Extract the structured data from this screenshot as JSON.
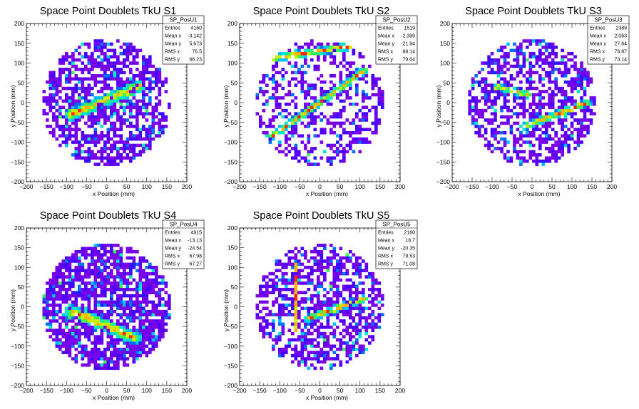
{
  "chart_data": [
    {
      "type": "heatmap",
      "title": "Space Point Doublets TkU S1",
      "xlabel": "x Position (mm)",
      "ylabel": "y Position (mm)",
      "xlim": [
        -200,
        200
      ],
      "ylim": [
        -200,
        200
      ],
      "xticks": [
        "−200",
        "−150",
        "−100",
        "−50",
        "0",
        "50",
        "100",
        "150",
        "200"
      ],
      "yticks": [
        "−200",
        "−150",
        "−100",
        "−50",
        "0",
        "50",
        "100",
        "150",
        "200"
      ],
      "circle_radius_mm": 160,
      "bin_size_mm": 8,
      "band": {
        "x0": -90,
        "y0": -30,
        "x1": 80,
        "y1": 40,
        "width": 16
      },
      "band2": null,
      "fill_fraction": 0.62,
      "seed": 11,
      "stats": {
        "name": "SP_PosU1",
        "rows": [
          {
            "label": "Entries",
            "value": "4160"
          },
          {
            "label": "Mean x",
            "value": "-3.142"
          },
          {
            "label": "Mean y",
            "value": "5.673"
          },
          {
            "label": "RMS x",
            "value": "76.5"
          },
          {
            "label": "RMS y",
            "value": "66.23"
          }
        ]
      }
    },
    {
      "type": "heatmap",
      "title": "Space Point Doublets TkU S2",
      "xlabel": "x Position (mm)",
      "ylabel": "y Position (mm)",
      "xlim": [
        -200,
        200
      ],
      "ylim": [
        -200,
        200
      ],
      "xticks": [
        "−200",
        "−150",
        "−100",
        "−50",
        "0",
        "50",
        "100",
        "150",
        "200"
      ],
      "yticks": [
        "−200",
        "−150",
        "−100",
        "−50",
        "0",
        "50",
        "100",
        "150",
        "200"
      ],
      "circle_radius_mm": 160,
      "bin_size_mm": 8,
      "band": {
        "x0": -130,
        "y0": 110,
        "x1": 120,
        "y1": 150,
        "width": 10
      },
      "band2": {
        "x0": -140,
        "y0": -100,
        "x1": 110,
        "y1": 80,
        "width": 10
      },
      "fill_fraction": 0.4,
      "seed": 23,
      "stats": {
        "name": "SP_PosU2",
        "rows": [
          {
            "label": "Entries",
            "value": "1519"
          },
          {
            "label": "Mean x",
            "value": "-2.399"
          },
          {
            "label": "Mean y",
            "value": "-21.94"
          },
          {
            "label": "RMS x",
            "value": "88.14"
          },
          {
            "label": "RMS y",
            "value": "79.04"
          }
        ]
      }
    },
    {
      "type": "heatmap",
      "title": "Space Point Doublets TkU S3",
      "xlabel": "x Position (mm)",
      "ylabel": "y Position (mm)",
      "xlim": [
        -200,
        200
      ],
      "ylim": [
        -200,
        200
      ],
      "xticks": [
        "−200",
        "−150",
        "−100",
        "−50",
        "0",
        "50",
        "100",
        "150",
        "200"
      ],
      "yticks": [
        "−200",
        "−150",
        "−100",
        "−50",
        "0",
        "50",
        "100",
        "150",
        "200"
      ],
      "circle_radius_mm": 160,
      "bin_size_mm": 8,
      "band": {
        "x0": -90,
        "y0": 40,
        "x1": -10,
        "y1": 20,
        "width": 10
      },
      "band2": {
        "x0": -20,
        "y0": -60,
        "x1": 140,
        "y1": 0,
        "width": 10
      },
      "fill_fraction": 0.55,
      "seed": 37,
      "stats": {
        "name": "SP_PosU3",
        "rows": [
          {
            "label": "Entries",
            "value": "2389"
          },
          {
            "label": "Mean x",
            "value": "2.063"
          },
          {
            "label": "Mean y",
            "value": "27.64"
          },
          {
            "label": "RMS x",
            "value": "76.87"
          },
          {
            "label": "RMS y",
            "value": "73.14"
          }
        ]
      }
    },
    {
      "type": "heatmap",
      "title": "Space Point Doublets TkU S4",
      "xlabel": "x Position (mm)",
      "ylabel": "y Position (mm)",
      "xlim": [
        -200,
        200
      ],
      "ylim": [
        -200,
        200
      ],
      "xticks": [
        "−200",
        "−150",
        "−100",
        "−50",
        "0",
        "50",
        "100",
        "150",
        "200"
      ],
      "yticks": [
        "−200",
        "−150",
        "−100",
        "−50",
        "0",
        "50",
        "100",
        "150",
        "200"
      ],
      "circle_radius_mm": 160,
      "bin_size_mm": 8,
      "band": {
        "x0": -90,
        "y0": -10,
        "x1": 70,
        "y1": -80,
        "width": 16
      },
      "band2": null,
      "fill_fraction": 0.78,
      "seed": 41,
      "stats": {
        "name": "SP_PosU4",
        "rows": [
          {
            "label": "Entries",
            "value": "4915"
          },
          {
            "label": "Mean x",
            "value": "-13.13"
          },
          {
            "label": "Mean y",
            "value": "-24.54"
          },
          {
            "label": "RMS x",
            "value": "67.98"
          },
          {
            "label": "RMS y",
            "value": "67.27"
          }
        ]
      }
    },
    {
      "type": "heatmap",
      "title": "Space Point Doublets TkU S5",
      "xlabel": "x Position (mm)",
      "ylabel": "y Position (mm)",
      "xlim": [
        -200,
        200
      ],
      "ylim": [
        -200,
        200
      ],
      "xticks": [
        "−200",
        "−150",
        "−100",
        "−50",
        "0",
        "50",
        "100",
        "150",
        "200"
      ],
      "yticks": [
        "−200",
        "−150",
        "−100",
        "−50",
        "0",
        "50",
        "100",
        "150",
        "200"
      ],
      "circle_radius_mm": 160,
      "bin_size_mm": 8,
      "band": {
        "x0": -60,
        "y0": 120,
        "x1": -60,
        "y1": -60,
        "width": 8
      },
      "band2": {
        "x0": -30,
        "y0": -30,
        "x1": 110,
        "y1": 20,
        "width": 10
      },
      "fill_fraction": 0.55,
      "seed": 53,
      "stats": {
        "name": "SP_PosU5",
        "rows": [
          {
            "label": "Entries",
            "value": "2160"
          },
          {
            "label": "Mean x",
            "value": "18.7"
          },
          {
            "label": "Mean y",
            "value": "-20.35"
          },
          {
            "label": "RMS x",
            "value": "79.53"
          },
          {
            "label": "RMS y",
            "value": "71.08"
          }
        ]
      }
    }
  ]
}
